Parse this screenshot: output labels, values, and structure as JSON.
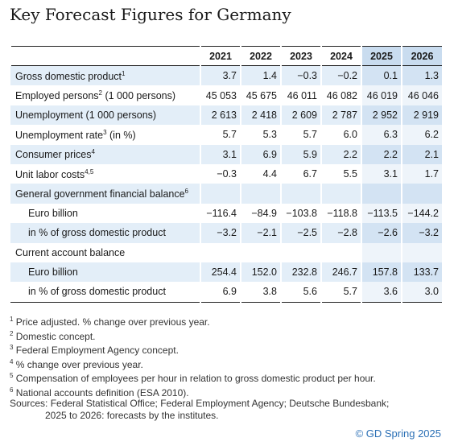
{
  "header": {
    "title": "Key Forecast Figures for Germany"
  },
  "table": {
    "columns": [
      "2021",
      "2022",
      "2023",
      "2024",
      "2025",
      "2026"
    ],
    "rows": [
      {
        "label": "Gross domestic product",
        "note": "1",
        "values": [
          "3.7",
          "1.4",
          "−0.3",
          "−0.2",
          "0.1",
          "1.3"
        ]
      },
      {
        "label": "Employed persons",
        "note": "2",
        "label_suffix": "(1 000 persons)",
        "values": [
          "45 053",
          "45 675",
          "46 011",
          "46 082",
          "46 019",
          "46 046"
        ]
      },
      {
        "label": "Unemployment (1 000 persons)",
        "values": [
          "2 613",
          "2 418",
          "2 609",
          "2 787",
          "2 952",
          "2 919"
        ]
      },
      {
        "label": "Unemployment rate",
        "note": "3",
        "label_suffix": "(in %)",
        "values": [
          "5.7",
          "5.3",
          "5.7",
          "6.0",
          "6.3",
          "6.2"
        ]
      },
      {
        "label": "Consumer prices",
        "note": "4",
        "values": [
          "3.1",
          "6.9",
          "5.9",
          "2.2",
          "2.2",
          "2.1"
        ]
      },
      {
        "label": "Unit labor costs",
        "note": "4,5",
        "values": [
          "−0.3",
          "4.4",
          "6.7",
          "5.5",
          "3.1",
          "1.7"
        ]
      },
      {
        "label": "General government financial balance",
        "note": "6"
      },
      {
        "label": "Euro billion",
        "indent": true,
        "values": [
          "−116.4",
          "−84.9",
          "−103.8",
          "−118.8",
          "−113.5",
          "−144.2"
        ]
      },
      {
        "label": "in % of gross domestic product",
        "indent": true,
        "values": [
          "−3.2",
          "−2.1",
          "−2.5",
          "−2.8",
          "−2.6",
          "−3.2"
        ]
      },
      {
        "label": "Current account balance"
      },
      {
        "label": "Euro billion",
        "indent": true,
        "values": [
          "254.4",
          "152.0",
          "232.8",
          "246.7",
          "157.8",
          "133.7"
        ]
      },
      {
        "label": "in % of gross domestic product",
        "indent": true,
        "values": [
          "6.9",
          "3.8",
          "5.6",
          "5.7",
          "3.6",
          "3.0"
        ]
      }
    ]
  },
  "footnotes": [
    {
      "mark": "1",
      "text": "Price adjusted. % change over previous year."
    },
    {
      "mark": "2",
      "text": "Domestic concept."
    },
    {
      "mark": "3",
      "text": "Federal Employment Agency concept."
    },
    {
      "mark": "4",
      "text": "% change over previous year."
    },
    {
      "mark": "5",
      "text": "Compensation of employees per hour in relation to gross domestic product per hour."
    },
    {
      "mark": "6",
      "text": "National accounts definition (ESA 2010)."
    }
  ],
  "sources": [
    "Sources: Federal Statistical Office; Federal Employment Agency; Deutsche Bundesbank;",
    "2025 to 2026: forecasts by the institutes."
  ],
  "copyright": "© GD Spring 2025"
}
